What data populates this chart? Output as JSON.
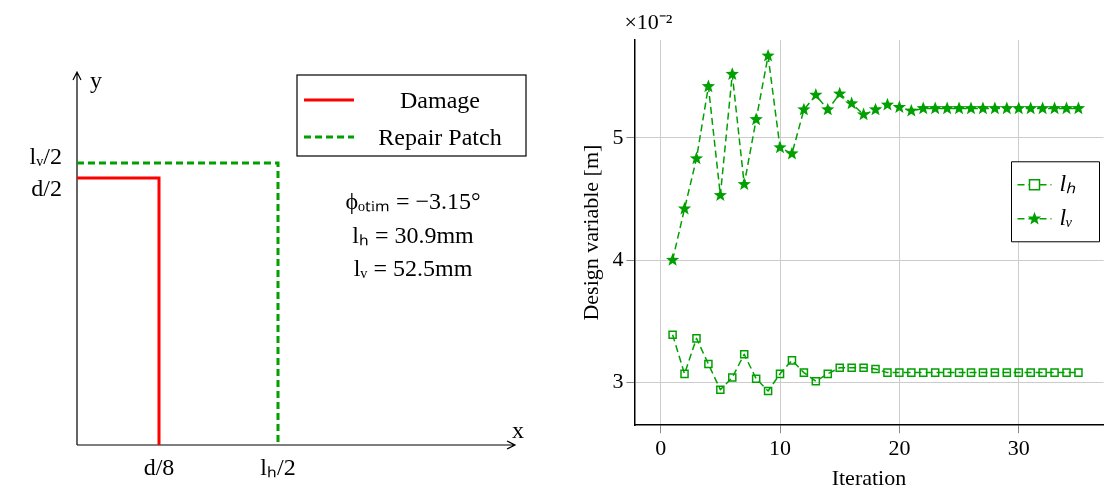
{
  "chart_data": [
    {
      "type": "other",
      "xlabel": "x",
      "ylabel": "y",
      "legend": "top right",
      "series": [
        {
          "name": "Damage",
          "color": "#ff0000",
          "line_style": "solid"
        },
        {
          "name": "Repair Patch",
          "color": "#00a000",
          "line_style": "dashed"
        }
      ],
      "annotations": [
        "d/8",
        "lₕ/2",
        "d/2",
        "lᵥ/2",
        "ϕₒₜᵢₘ = −3.15°",
        "lₕ = 30.9mm",
        "lᵥ = 52.5mm"
      ]
    },
    {
      "type": "line",
      "xlabel": "Iteration",
      "ylabel": "Design variable [m]",
      "xlim": [
        -2.2,
        37.1
      ],
      "ylim": [
        2.65,
        5.8
      ],
      "xticks": [
        0,
        10,
        20,
        30
      ],
      "yticks": [
        3,
        4,
        5
      ],
      "grid": true,
      "legend": "right",
      "line_style": "dashed",
      "x": [
        1,
        2,
        3,
        4,
        5,
        6,
        7,
        8,
        9,
        10,
        11,
        12,
        13,
        14,
        15,
        16,
        17,
        18,
        19,
        20,
        21,
        22,
        23,
        24,
        25,
        26,
        27,
        28,
        29,
        30,
        31,
        32,
        33,
        34,
        35
      ],
      "series": [
        {
          "name": "lₕ",
          "color": "#00a000",
          "marker": "square",
          "values": [
            3.39,
            3.07,
            3.36,
            3.15,
            2.94,
            3.04,
            3.23,
            3.03,
            2.93,
            3.07,
            3.18,
            3.08,
            3.01,
            3.07,
            3.12,
            3.12,
            3.12,
            3.11,
            3.08,
            3.08,
            3.08,
            3.08,
            3.08,
            3.08,
            3.08,
            3.08,
            3.08,
            3.08,
            3.08,
            3.08,
            3.08,
            3.08,
            3.08,
            3.08,
            3.08
          ]
        },
        {
          "name": "lᵥ",
          "color": "#00a000",
          "marker": "star",
          "values": [
            4.0,
            4.42,
            4.83,
            5.42,
            4.53,
            5.52,
            4.62,
            5.15,
            5.67,
            4.92,
            4.87,
            5.23,
            5.35,
            5.23,
            5.36,
            5.28,
            5.19,
            5.23,
            5.27,
            5.25,
            5.22,
            5.24,
            5.24,
            5.24,
            5.24,
            5.24,
            5.24,
            5.24,
            5.24,
            5.24,
            5.24,
            5.24,
            5.24,
            5.24,
            5.24
          ]
        }
      ],
      "annotations": [
        "×10⁻²"
      ]
    }
  ]
}
